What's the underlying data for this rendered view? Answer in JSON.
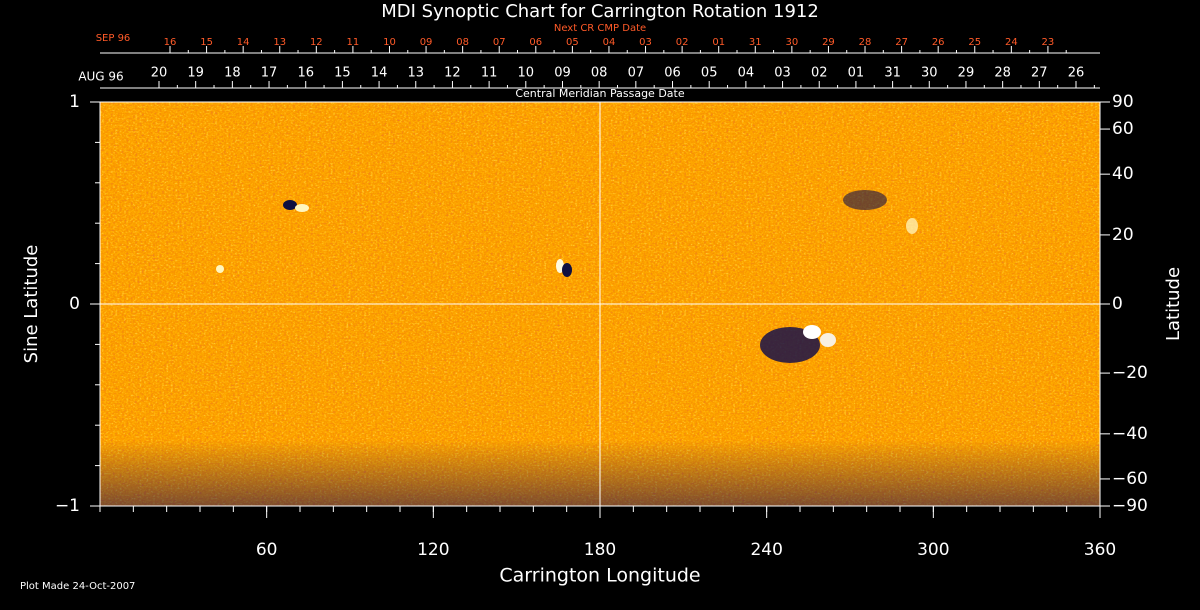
{
  "chart_data": {
    "type": "image",
    "title": "MDI Synoptic Chart for Carrington Rotation 1912",
    "xlabel": "Carrington Longitude",
    "ylabel": "Sine Latitude",
    "y2label": "Latitude",
    "xlim": [
      0,
      360
    ],
    "xticks": [
      60,
      120,
      180,
      240,
      300,
      360
    ],
    "ylim": [
      -1,
      1
    ],
    "yticks": [
      {
        "value": -1,
        "label": "−1"
      },
      0,
      1
    ],
    "y2lim": [
      -90,
      90
    ],
    "y2scale": "sine",
    "y2ticks": [
      {
        "value": -90,
        "label": "−90"
      },
      {
        "value": -60,
        "label": "−60"
      },
      {
        "value": -40,
        "label": "−40"
      },
      {
        "value": -20,
        "label": "−20"
      },
      0,
      20,
      40,
      60,
      90
    ],
    "reference_lines": {
      "x": 180,
      "y": 0
    },
    "top_axis": {
      "label": "Next CR CMP Date",
      "month": "SEP 96",
      "days": [
        "16",
        "15",
        "14",
        "13",
        "12",
        "11",
        "10",
        "09",
        "08",
        "07",
        "06",
        "05",
        "04",
        "03",
        "02",
        "01",
        "31",
        "30",
        "29",
        "28",
        "27",
        "26",
        "25",
        "24",
        "23"
      ]
    },
    "second_axis": {
      "label": "Central Meridian Passage Date",
      "month": "AUG 96",
      "days": [
        "20",
        "19",
        "18",
        "17",
        "16",
        "15",
        "14",
        "13",
        "12",
        "11",
        "10",
        "09",
        "08",
        "07",
        "06",
        "05",
        "04",
        "03",
        "02",
        "01",
        "31",
        "30",
        "29",
        "28",
        "27",
        "26"
      ]
    },
    "footer": "Plot Made 24-Oct-2007"
  }
}
